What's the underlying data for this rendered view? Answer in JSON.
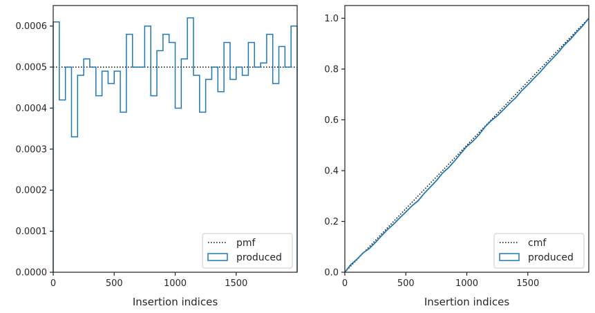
{
  "colors": {
    "produced": "#1f77b4",
    "reference": "#000000",
    "frame": "#262626"
  },
  "chart_data": [
    {
      "type": "step",
      "xlabel": "Insertion indices",
      "ylabel": "",
      "xlim": [
        0,
        2000
      ],
      "ylim": [
        0,
        0.00065
      ],
      "xticks": [
        0,
        500,
        1000,
        1500
      ],
      "xtick_labels": [
        "0",
        "500",
        "1000",
        "1500"
      ],
      "yticks": [
        0,
        0.0001,
        0.0002,
        0.0003,
        0.0004,
        0.0005,
        0.0006
      ],
      "ytick_labels": [
        "0.0000",
        "0.0001",
        "0.0002",
        "0.0003",
        "0.0004",
        "0.0005",
        "0.0006"
      ],
      "grid": false,
      "legend": {
        "position": "bottom-right",
        "entries": [
          "pmf",
          "produced"
        ]
      },
      "reference": {
        "name": "pmf",
        "style": "dotted",
        "y": 0.0005
      },
      "series": [
        {
          "name": "produced",
          "bin_width": 50,
          "x": [
            0,
            50,
            100,
            150,
            200,
            250,
            300,
            350,
            400,
            450,
            500,
            550,
            600,
            650,
            700,
            750,
            800,
            850,
            900,
            950,
            1000,
            1050,
            1100,
            1150,
            1200,
            1250,
            1300,
            1350,
            1400,
            1450,
            1500,
            1550,
            1600,
            1650,
            1700,
            1750,
            1800,
            1850,
            1900,
            1950
          ],
          "values": [
            0.00061,
            0.00042,
            0.0005,
            0.00033,
            0.00048,
            0.00052,
            0.0005,
            0.00043,
            0.00049,
            0.00046,
            0.00049,
            0.00039,
            0.00058,
            0.0005,
            0.0005,
            0.0006,
            0.00043,
            0.00054,
            0.00058,
            0.00056,
            0.0004,
            0.00052,
            0.00062,
            0.00048,
            0.00039,
            0.00047,
            0.0005,
            0.00044,
            0.00056,
            0.00047,
            0.0005,
            0.00048,
            0.00056,
            0.0005,
            0.00051,
            0.00058,
            0.00046,
            0.00055,
            0.0005,
            0.0006
          ]
        }
      ]
    },
    {
      "type": "line",
      "xlabel": "Insertion indices",
      "ylabel": "",
      "xlim": [
        0,
        2000
      ],
      "ylim": [
        0,
        1.05
      ],
      "xticks": [
        0,
        500,
        1000,
        1500
      ],
      "xtick_labels": [
        "0",
        "500",
        "1000",
        "1500"
      ],
      "yticks": [
        0,
        0.2,
        0.4,
        0.6,
        0.8,
        1.0
      ],
      "ytick_labels": [
        "0.0",
        "0.2",
        "0.4",
        "0.6",
        "0.8",
        "1.0"
      ],
      "grid": false,
      "legend": {
        "position": "bottom-right",
        "entries": [
          "cmf",
          "produced"
        ]
      },
      "reference": {
        "name": "cmf",
        "style": "dotted",
        "x": [
          0,
          2000
        ],
        "y": [
          0,
          1.0
        ]
      },
      "series": [
        {
          "name": "produced",
          "x": [
            0,
            50,
            100,
            150,
            200,
            250,
            300,
            350,
            400,
            450,
            500,
            550,
            600,
            650,
            700,
            750,
            800,
            850,
            900,
            950,
            1000,
            1050,
            1100,
            1150,
            1200,
            1250,
            1300,
            1350,
            1400,
            1450,
            1500,
            1550,
            1600,
            1650,
            1700,
            1750,
            1800,
            1850,
            1900,
            1950,
            2000
          ],
          "values": [
            0,
            0.0305,
            0.0515,
            0.0765,
            0.093,
            0.117,
            0.143,
            0.168,
            0.1895,
            0.214,
            0.237,
            0.2615,
            0.281,
            0.31,
            0.335,
            0.36,
            0.39,
            0.4115,
            0.4385,
            0.4675,
            0.4955,
            0.5155,
            0.5415,
            0.5725,
            0.5965,
            0.616,
            0.6395,
            0.6645,
            0.6865,
            0.7145,
            0.738,
            0.763,
            0.787,
            0.815,
            0.84,
            0.8655,
            0.8945,
            0.9175,
            0.945,
            0.97,
            1.0
          ]
        }
      ]
    }
  ]
}
